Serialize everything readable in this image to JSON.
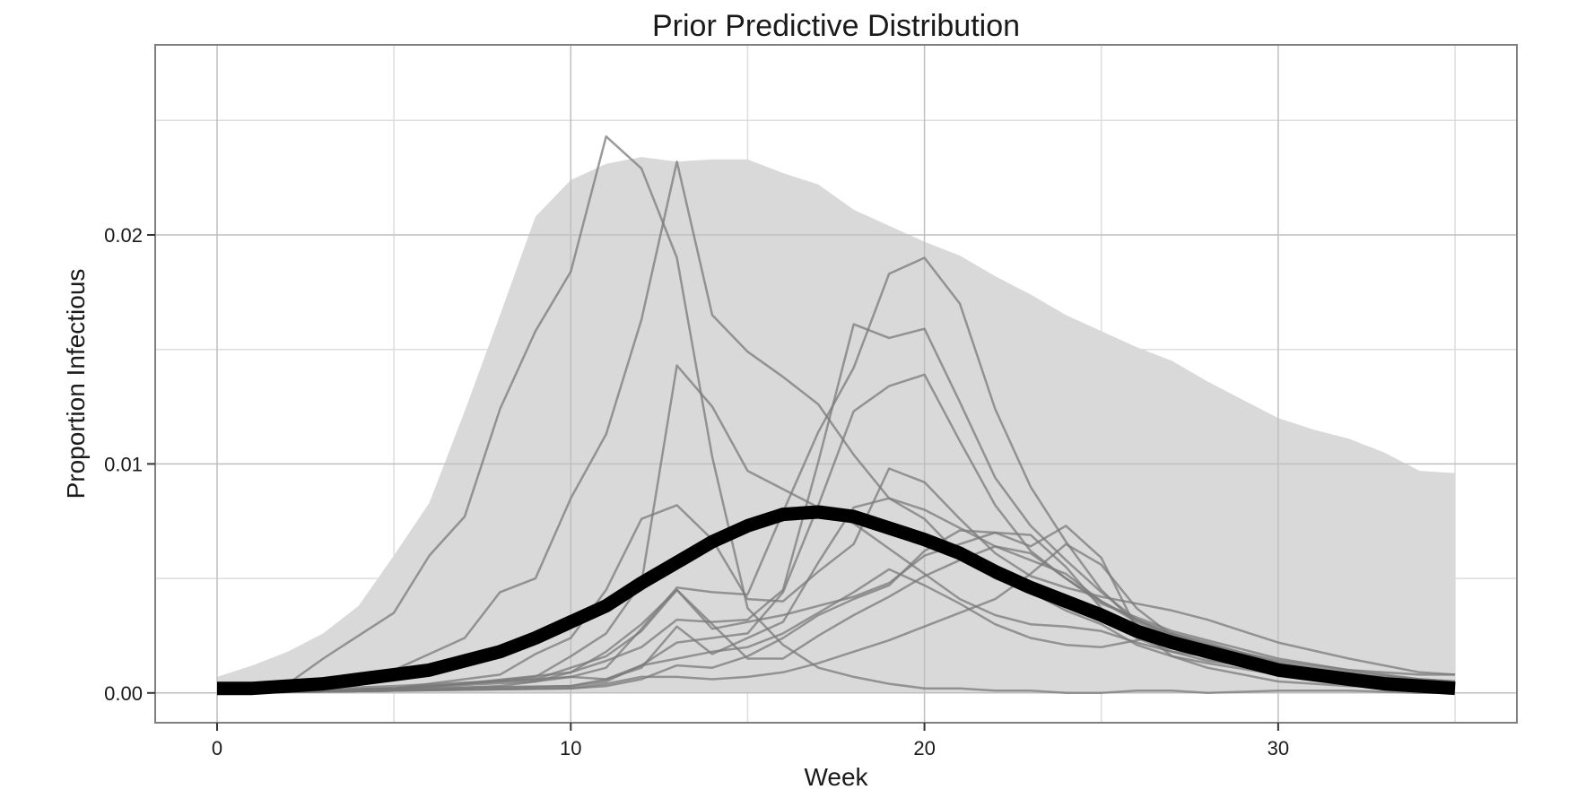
{
  "chart_data": {
    "type": "line",
    "title": "Prior Predictive Distribution",
    "xlabel": "Week",
    "ylabel": "Proportion Infectious",
    "xlim": [
      -1.75,
      36.75
    ],
    "ylim": [
      -0.0013,
      0.0283
    ],
    "x_ticks": [
      0,
      10,
      20,
      30
    ],
    "x_tick_labels": [
      "0",
      "10",
      "20",
      "30"
    ],
    "y_ticks": [
      0,
      0.01,
      0.02
    ],
    "y_tick_labels": [
      "0.00",
      "0.01",
      "0.02"
    ],
    "grid": true,
    "legend": "none",
    "colors": {
      "band": "#d9d9d9",
      "sample": "#7a7a7a",
      "mean": "#000000",
      "grid_major": "#bfbfbf",
      "grid_minor": "#dddddd",
      "frame": "#7f7f7f"
    },
    "band": {
      "x": [
        0,
        1,
        2,
        3,
        4,
        5,
        6,
        7,
        8,
        9,
        10,
        11,
        12,
        13,
        14,
        15,
        16,
        17,
        18,
        19,
        20,
        21,
        22,
        23,
        24,
        25,
        26,
        27,
        28,
        29,
        30,
        31,
        32,
        33,
        34,
        35
      ],
      "upper": [
        0.0007,
        0.0012,
        0.0018,
        0.0026,
        0.0038,
        0.006,
        0.0083,
        0.0123,
        0.0165,
        0.0208,
        0.0224,
        0.0231,
        0.0234,
        0.0232,
        0.0233,
        0.0233,
        0.0227,
        0.0222,
        0.0211,
        0.0204,
        0.0197,
        0.0191,
        0.0182,
        0.0174,
        0.0165,
        0.0158,
        0.0151,
        0.0145,
        0.0136,
        0.0128,
        0.012,
        0.0115,
        0.0111,
        0.0105,
        0.0097,
        0.0096
      ],
      "lower": [
        0,
        0,
        0,
        0,
        0,
        0,
        0,
        0,
        0,
        0,
        0,
        0,
        0,
        0,
        0,
        0,
        0,
        0,
        0,
        0,
        0,
        0,
        0,
        0,
        0,
        0,
        0,
        0,
        0,
        0,
        0,
        0,
        0,
        0,
        0,
        0
      ]
    },
    "mean": {
      "x": [
        0,
        1,
        2,
        3,
        4,
        5,
        6,
        7,
        8,
        9,
        10,
        11,
        12,
        13,
        14,
        15,
        16,
        17,
        18,
        19,
        20,
        21,
        22,
        23,
        24,
        25,
        26,
        27,
        28,
        29,
        30,
        31,
        32,
        33,
        34,
        35
      ],
      "y": [
        0.0002,
        0.0002,
        0.0003,
        0.0004,
        0.0006,
        0.0008,
        0.001,
        0.0014,
        0.0018,
        0.0024,
        0.0031,
        0.0038,
        0.0048,
        0.0057,
        0.0066,
        0.0073,
        0.0078,
        0.0079,
        0.0077,
        0.0072,
        0.0067,
        0.0061,
        0.0053,
        0.0046,
        0.004,
        0.0034,
        0.0027,
        0.0022,
        0.0018,
        0.0014,
        0.001,
        0.0008,
        0.0006,
        0.0004,
        0.0003,
        0.0002
      ]
    },
    "series": [
      {
        "x": [
          0,
          2,
          4,
          5,
          6,
          7,
          8,
          9,
          10,
          11,
          12,
          13,
          14,
          15,
          16,
          17,
          18,
          19,
          20,
          21,
          22,
          23,
          24,
          25,
          26,
          27,
          28,
          30,
          32,
          34,
          35
        ],
        "y": [
          0.0001,
          0.0003,
          0.0006,
          0.001,
          0.0017,
          0.0024,
          0.0044,
          0.005,
          0.0085,
          0.0113,
          0.0163,
          0.0232,
          0.0165,
          0.0149,
          0.0138,
          0.0126,
          0.0104,
          0.0085,
          0.0076,
          0.006,
          0.005,
          0.0044,
          0.0036,
          0.003,
          0.0021,
          0.0016,
          0.0013,
          0.0008,
          0.0005,
          0.0003,
          0.0003
        ]
      },
      {
        "x": [
          0,
          1,
          2,
          3,
          4,
          5,
          6,
          7,
          8,
          9,
          10,
          11,
          12,
          13,
          14,
          15,
          16,
          17,
          18,
          19,
          20,
          21,
          22,
          23,
          24,
          25,
          26,
          27,
          28,
          30,
          32,
          34,
          35
        ],
        "y": [
          0.0001,
          0.0002,
          0.0004,
          0.0015,
          0.0025,
          0.0035,
          0.006,
          0.0077,
          0.0124,
          0.0158,
          0.0184,
          0.0243,
          0.0229,
          0.019,
          0.0103,
          0.0037,
          0.0021,
          0.0011,
          0.0007,
          0.0004,
          0.0002,
          0.0002,
          0.0001,
          0.0001,
          0,
          0,
          0.0001,
          0.0001,
          0,
          0.0001,
          0.0001,
          0,
          0
        ]
      },
      {
        "x": [
          0,
          5,
          7,
          9,
          10,
          11,
          12,
          13,
          14,
          15,
          16,
          17,
          18,
          19,
          20,
          21,
          22,
          23,
          24,
          25,
          26,
          27,
          28,
          30,
          32,
          34,
          35
        ],
        "y": [
          0,
          0.0002,
          0.0004,
          0.0007,
          0.0016,
          0.0026,
          0.0048,
          0.0143,
          0.0125,
          0.0097,
          0.0089,
          0.0081,
          0.0074,
          0.0063,
          0.0052,
          0.0041,
          0.0034,
          0.003,
          0.0029,
          0.0027,
          0.0022,
          0.0018,
          0.0014,
          0.001,
          0.0007,
          0.0004,
          0.0003
        ]
      },
      {
        "x": [
          0,
          5,
          8,
          9,
          10,
          11,
          12,
          13,
          14,
          15,
          16,
          17,
          18,
          19,
          20,
          21,
          22,
          23,
          24,
          25,
          26,
          27,
          28,
          30,
          32,
          34,
          35
        ],
        "y": [
          0,
          0.0002,
          0.0008,
          0.0017,
          0.0024,
          0.0045,
          0.0076,
          0.0082,
          0.0067,
          0.0041,
          0.004,
          0.0053,
          0.0065,
          0.0098,
          0.0092,
          0.0076,
          0.0061,
          0.0051,
          0.0046,
          0.0042,
          0.0039,
          0.0036,
          0.0032,
          0.0022,
          0.0015,
          0.0009,
          0.0008
        ]
      },
      {
        "x": [
          0,
          5,
          8,
          10,
          11,
          12,
          13,
          14,
          15,
          16,
          17,
          18,
          19,
          20,
          21,
          22,
          23,
          24,
          25,
          26,
          27,
          28,
          30,
          32,
          34,
          35
        ],
        "y": [
          0,
          0.0001,
          0.0003,
          0.0007,
          0.0011,
          0.0028,
          0.0046,
          0.0044,
          0.0043,
          0.0079,
          0.0114,
          0.0142,
          0.0183,
          0.019,
          0.017,
          0.0124,
          0.009,
          0.0066,
          0.0045,
          0.003,
          0.0021,
          0.0015,
          0.0008,
          0.0005,
          0.0003,
          0.0002
        ]
      },
      {
        "x": [
          0,
          5,
          10,
          11,
          12,
          13,
          14,
          15,
          16,
          17,
          18,
          19,
          20,
          21,
          22,
          23,
          24,
          25,
          26,
          27,
          28,
          30,
          32,
          34,
          35
        ],
        "y": [
          0,
          0.0001,
          0.0003,
          0.0005,
          0.0012,
          0.0022,
          0.0024,
          0.0026,
          0.0044,
          0.0082,
          0.0123,
          0.0134,
          0.0139,
          0.011,
          0.0082,
          0.0062,
          0.005,
          0.004,
          0.0031,
          0.0025,
          0.0021,
          0.0014,
          0.001,
          0.0006,
          0.0005
        ]
      },
      {
        "x": [
          0,
          5,
          10,
          11,
          12,
          13,
          14,
          15,
          16,
          17,
          18,
          19,
          20,
          21,
          22,
          23,
          24,
          25,
          26,
          27,
          28,
          30,
          32,
          34,
          35
        ],
        "y": [
          0,
          0.0001,
          0.0009,
          0.0014,
          0.002,
          0.0032,
          0.0031,
          0.0032,
          0.0045,
          0.0101,
          0.0161,
          0.0155,
          0.0159,
          0.0127,
          0.0094,
          0.0073,
          0.0058,
          0.0044,
          0.0032,
          0.0025,
          0.002,
          0.0013,
          0.0009,
          0.0006,
          0.0005
        ]
      },
      {
        "x": [
          0,
          5,
          10,
          11,
          12,
          13,
          14,
          15,
          16,
          17,
          18,
          19,
          20,
          21,
          22,
          23,
          24,
          25,
          26,
          27,
          28,
          30,
          32,
          34,
          35
        ],
        "y": [
          0,
          0.0002,
          0.0003,
          0.0006,
          0.0011,
          0.0029,
          0.0017,
          0.0024,
          0.0031,
          0.0057,
          0.0081,
          0.0085,
          0.008,
          0.0072,
          0.0064,
          0.0058,
          0.0052,
          0.004,
          0.0032,
          0.0026,
          0.0021,
          0.0013,
          0.0008,
          0.0005,
          0.0004
        ]
      },
      {
        "x": [
          0,
          5,
          9,
          10,
          11,
          12,
          13,
          14,
          15,
          16,
          17,
          18,
          19,
          20,
          21,
          22,
          23,
          24,
          25,
          26,
          27,
          28,
          30,
          32,
          34,
          35
        ],
        "y": [
          0,
          0.0002,
          0.0006,
          0.0011,
          0.0016,
          0.0027,
          0.0045,
          0.0028,
          0.0031,
          0.0034,
          0.0038,
          0.0042,
          0.0048,
          0.006,
          0.0065,
          0.007,
          0.0069,
          0.0055,
          0.0037,
          0.0024,
          0.0018,
          0.0016,
          0.0009,
          0.0007,
          0.0004,
          0.0003
        ]
      },
      {
        "x": [
          0,
          5,
          10,
          11,
          12,
          13,
          14,
          15,
          16,
          17,
          18,
          19,
          20,
          21,
          22,
          23,
          24,
          25,
          26,
          27,
          28,
          30,
          32,
          34,
          35
        ],
        "y": [
          0,
          0.0001,
          0.0002,
          0.0003,
          0.0006,
          0.0012,
          0.0011,
          0.0016,
          0.0024,
          0.0034,
          0.0041,
          0.0047,
          0.0062,
          0.0071,
          0.007,
          0.0064,
          0.0073,
          0.0059,
          0.0028,
          0.0016,
          0.0011,
          0.0005,
          0.0003,
          0.0002,
          0.0002
        ]
      },
      {
        "x": [
          0,
          5,
          10,
          11,
          12,
          13,
          14,
          15,
          16,
          17,
          18,
          19,
          20,
          21,
          22,
          23,
          24,
          25,
          26,
          27,
          28,
          30,
          32,
          34,
          35
        ],
        "y": [
          0,
          0.0001,
          0.0002,
          0.0004,
          0.0007,
          0.0007,
          0.0006,
          0.0007,
          0.0009,
          0.0013,
          0.0018,
          0.0023,
          0.0029,
          0.0035,
          0.0041,
          0.0052,
          0.0065,
          0.0056,
          0.0037,
          0.0025,
          0.0019,
          0.0012,
          0.0008,
          0.0006,
          0.0005
        ]
      },
      {
        "x": [
          0,
          5,
          9,
          10,
          11,
          12,
          13,
          14,
          15,
          16,
          17,
          18,
          19,
          20,
          21,
          22,
          23,
          24,
          25,
          26,
          27,
          28,
          30,
          32,
          34,
          35
        ],
        "y": [
          0,
          0.0003,
          0.0006,
          0.0007,
          0.0006,
          0.0012,
          0.0015,
          0.0018,
          0.002,
          0.0026,
          0.0035,
          0.0044,
          0.0054,
          0.0047,
          0.0039,
          0.003,
          0.0024,
          0.0021,
          0.002,
          0.0023,
          0.0026,
          0.0022,
          0.0013,
          0.0007,
          0.0004,
          0.0003
        ]
      },
      {
        "x": [
          0,
          5,
          9,
          10,
          11,
          12,
          13,
          14,
          15,
          16,
          17,
          18,
          19,
          20,
          21,
          22,
          23,
          24,
          25,
          26,
          27,
          28,
          30,
          32,
          34,
          35
        ],
        "y": [
          0,
          0.0002,
          0.0005,
          0.0009,
          0.0018,
          0.003,
          0.0045,
          0.003,
          0.0015,
          0.0015,
          0.0025,
          0.0034,
          0.0042,
          0.0051,
          0.0058,
          0.0064,
          0.0061,
          0.005,
          0.0039,
          0.0033,
          0.0027,
          0.0023,
          0.0015,
          0.001,
          0.0008,
          0.0008
        ]
      }
    ]
  }
}
